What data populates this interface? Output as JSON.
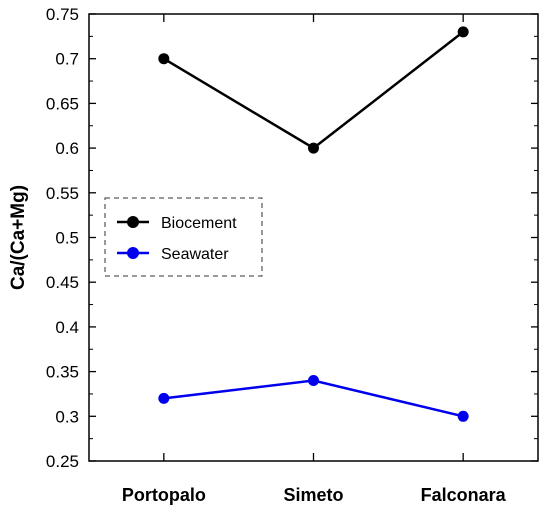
{
  "chart_data": {
    "type": "line",
    "categories": [
      "Portopalo",
      "Simeto",
      "Falconara"
    ],
    "series": [
      {
        "name": "Biocement",
        "values": [
          0.7,
          0.6,
          0.73
        ],
        "color": "#000000"
      },
      {
        "name": "Seawater",
        "values": [
          0.32,
          0.34,
          0.3
        ],
        "color": "#0000ee"
      }
    ],
    "ylabel": "Ca/(Ca+Mg)",
    "xlabel": "",
    "ylim": [
      0.25,
      0.75
    ],
    "yticks": [
      "0.25",
      "0.3",
      "0.35",
      "0.4",
      "0.45",
      "0.5",
      "0.55",
      "0.6",
      "0.65",
      "0.7",
      "0.75"
    ],
    "grid": false,
    "legend": {
      "placement": "left-middle",
      "border": "dashed"
    }
  }
}
